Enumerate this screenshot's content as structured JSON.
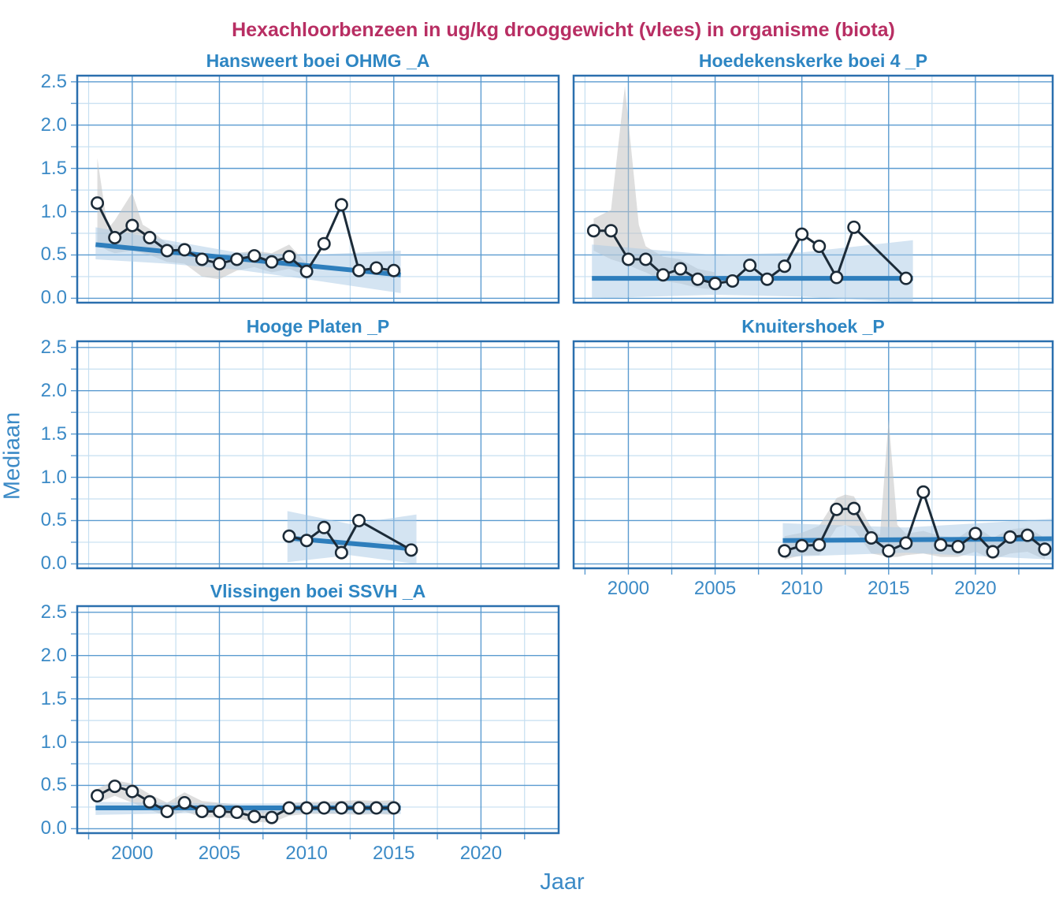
{
  "title": "Hexachloorbenzeen in ug/kg drooggewicht (vlees) in organisme (biota)",
  "y_axis_title": "Mediaan",
  "x_axis_title": "Jaar",
  "y_ticks": [
    "0.0",
    "0.5",
    "1.0",
    "1.5",
    "2.0",
    "2.5"
  ],
  "x_ticks": [
    "2000",
    "2005",
    "2010",
    "2015",
    "2020"
  ],
  "colors": {
    "title": "#b82e63",
    "label_blue": "#3b8ac6",
    "panel_title_blue": "#2e86c3",
    "grid_major": "#5b9bd0",
    "grid_minor": "#c6dff1",
    "panel_border": "#2a6fae",
    "trend_line": "#2e7ebc",
    "series_line": "#1c2b38",
    "marker_fill": "#ffffff",
    "band_trend": "#aac9e6",
    "band_data": "#c3c3c3"
  },
  "chart_data": [
    {
      "type": "line",
      "title": "Hansweert boei OHMG _A",
      "xlim": [
        1996.8,
        2024.5
      ],
      "ylim": [
        -0.06,
        2.58
      ],
      "x": [
        1998,
        1999,
        2000,
        2001,
        2002,
        2003,
        2004,
        2005,
        2006,
        2007,
        2008,
        2009,
        2010,
        2011,
        2012,
        2013,
        2014,
        2015
      ],
      "y": [
        1.1,
        0.7,
        0.84,
        0.7,
        0.55,
        0.56,
        0.45,
        0.4,
        0.45,
        0.49,
        0.42,
        0.48,
        0.31,
        0.63,
        1.08,
        0.32,
        0.35,
        0.32
      ],
      "trend": {
        "x": [
          1997.9,
          2015.4
        ],
        "y": [
          0.62,
          0.27
        ]
      },
      "ci_trend": [
        [
          1997.9,
          0.45,
          0.82
        ],
        [
          2002,
          0.4,
          0.67
        ],
        [
          2006,
          0.33,
          0.53
        ],
        [
          2010,
          0.22,
          0.5
        ],
        [
          2015.4,
          0.06,
          0.55
        ]
      ],
      "ci_data": [
        [
          1998,
          0.63,
          1.62
        ],
        [
          1998.6,
          0.55,
          0.8
        ],
        [
          1999,
          0.52,
          0.9
        ],
        [
          2000,
          0.55,
          1.22
        ],
        [
          2000.6,
          0.52,
          0.85
        ],
        [
          2001,
          0.5,
          0.8
        ],
        [
          2002,
          0.42,
          0.63
        ],
        [
          2003,
          0.4,
          0.6
        ],
        [
          2004,
          0.25,
          0.5
        ],
        [
          2005,
          0.22,
          0.47
        ],
        [
          2006,
          0.32,
          0.52
        ],
        [
          2007,
          0.36,
          0.55
        ],
        [
          2008,
          0.3,
          0.52
        ],
        [
          2009,
          0.34,
          0.62
        ],
        [
          2010,
          0.26,
          0.4
        ]
      ]
    },
    {
      "type": "line",
      "title": "Hoedekenskerke boei 4 _P",
      "xlim": [
        1996.8,
        2024.5
      ],
      "ylim": [
        -0.06,
        2.58
      ],
      "x": [
        1998,
        1999,
        2000,
        2001,
        2002,
        2003,
        2004,
        2005,
        2006,
        2007,
        2008,
        2009,
        2010,
        2011,
        2012,
        2013,
        2016
      ],
      "y": [
        0.78,
        0.78,
        0.45,
        0.45,
        0.27,
        0.34,
        0.22,
        0.17,
        0.2,
        0.38,
        0.22,
        0.37,
        0.74,
        0.6,
        0.24,
        0.82,
        0.23
      ],
      "trend": {
        "x": [
          1997.9,
          2016.4
        ],
        "y": [
          0.23,
          0.23
        ]
      },
      "ci_trend": [
        [
          1997.9,
          0.0,
          0.62
        ],
        [
          2005,
          0.04,
          0.5
        ],
        [
          2010,
          0.02,
          0.53
        ],
        [
          2016.4,
          -0.05,
          0.67
        ]
      ],
      "ci_data": [
        [
          1998,
          0.55,
          0.92
        ],
        [
          1999,
          0.45,
          1.02
        ],
        [
          1999.8,
          0.4,
          2.45
        ],
        [
          2000.6,
          0.33,
          0.85
        ],
        [
          2001,
          0.3,
          0.6
        ],
        [
          2002,
          0.2,
          0.48
        ],
        [
          2003,
          0.17,
          0.45
        ],
        [
          2004,
          0.12,
          0.34
        ],
        [
          2005,
          0.1,
          0.3
        ]
      ]
    },
    {
      "type": "line",
      "title": "Hooge Platen _P",
      "xlim": [
        1996.8,
        2024.5
      ],
      "ylim": [
        -0.06,
        2.58
      ],
      "x": [
        2009,
        2010,
        2011,
        2012,
        2013,
        2016
      ],
      "y": [
        0.32,
        0.27,
        0.42,
        0.13,
        0.5,
        0.16
      ],
      "trend": {
        "x": [
          2008.9,
          2016.3
        ],
        "y": [
          0.3,
          0.17
        ]
      },
      "ci_trend": [
        [
          2008.9,
          0.02,
          0.61
        ],
        [
          2012.5,
          0.1,
          0.46
        ],
        [
          2016.3,
          0.0,
          0.57
        ]
      ],
      "ci_data": []
    },
    {
      "type": "line",
      "title": "Knuitershoek _P",
      "xlim": [
        1996.8,
        2024.5
      ],
      "ylim": [
        -0.06,
        2.58
      ],
      "x": [
        2009,
        2010,
        2011,
        2012,
        2013,
        2014,
        2015,
        2016,
        2017,
        2018,
        2019,
        2020,
        2021,
        2022,
        2023,
        2024
      ],
      "y": [
        0.15,
        0.21,
        0.22,
        0.63,
        0.64,
        0.3,
        0.15,
        0.24,
        0.83,
        0.22,
        0.2,
        0.35,
        0.14,
        0.31,
        0.33,
        0.17
      ],
      "trend": {
        "x": [
          2008.9,
          2024.4
        ],
        "y": [
          0.27,
          0.29
        ]
      },
      "ci_trend": [
        [
          2008.9,
          0.08,
          0.47
        ],
        [
          2016,
          0.13,
          0.42
        ],
        [
          2024.4,
          0.05,
          0.52
        ]
      ],
      "ci_data": [
        [
          2009,
          0.05,
          0.32
        ],
        [
          2010,
          0.1,
          0.36
        ],
        [
          2011,
          0.1,
          0.44
        ],
        [
          2012,
          0.42,
          0.76
        ],
        [
          2012.5,
          0.45,
          0.8
        ],
        [
          2013,
          0.4,
          0.78
        ],
        [
          2014,
          0.12,
          0.42
        ],
        [
          2014.5,
          0.1,
          0.33
        ],
        [
          2015,
          0.08,
          1.67
        ],
        [
          2015.5,
          0.08,
          0.45
        ],
        [
          2016,
          0.1,
          0.35
        ],
        [
          2017,
          0.12,
          0.38
        ],
        [
          2018,
          0.08,
          0.32
        ],
        [
          2019,
          0.08,
          0.3
        ],
        [
          2020,
          0.14,
          0.44
        ],
        [
          2021,
          0.05,
          0.3
        ],
        [
          2022,
          0.12,
          0.4
        ],
        [
          2023,
          0.14,
          0.42
        ],
        [
          2024,
          0.05,
          0.3
        ]
      ]
    },
    {
      "type": "line",
      "title": "Vlissingen boei SSVH _A",
      "xlim": [
        1996.8,
        2024.5
      ],
      "ylim": [
        -0.06,
        2.58
      ],
      "x": [
        1998,
        1999,
        2000,
        2001,
        2002,
        2003,
        2004,
        2005,
        2006,
        2007,
        2008,
        2009,
        2010,
        2011,
        2012,
        2013,
        2014,
        2015
      ],
      "y": [
        0.38,
        0.49,
        0.43,
        0.31,
        0.2,
        0.3,
        0.2,
        0.2,
        0.19,
        0.14,
        0.13,
        0.24,
        0.24,
        0.24,
        0.24,
        0.24,
        0.24,
        0.24
      ],
      "trend": {
        "x": [
          1997.9,
          2015.4
        ],
        "y": [
          0.24,
          0.24
        ]
      },
      "ci_trend": [
        [
          1997.9,
          0.16,
          0.31
        ],
        [
          2006,
          0.19,
          0.29
        ],
        [
          2015.4,
          0.17,
          0.3
        ]
      ],
      "ci_data": [
        [
          1998,
          0.3,
          0.46
        ],
        [
          1999,
          0.38,
          0.56
        ],
        [
          2000,
          0.3,
          0.52
        ],
        [
          2001,
          0.22,
          0.4
        ],
        [
          2002,
          0.14,
          0.3
        ],
        [
          2003,
          0.2,
          0.42
        ],
        [
          2004,
          0.13,
          0.32
        ],
        [
          2005,
          0.13,
          0.3
        ],
        [
          2006,
          0.12,
          0.28
        ],
        [
          2007,
          0.08,
          0.22
        ],
        [
          2008,
          0.07,
          0.2
        ],
        [
          2009,
          0.15,
          0.3
        ],
        [
          2010,
          0.17,
          0.31
        ],
        [
          2011,
          0.17,
          0.31
        ],
        [
          2012,
          0.17,
          0.32
        ],
        [
          2013,
          0.16,
          0.33
        ],
        [
          2014,
          0.17,
          0.32
        ],
        [
          2015,
          0.16,
          0.33
        ]
      ]
    }
  ]
}
